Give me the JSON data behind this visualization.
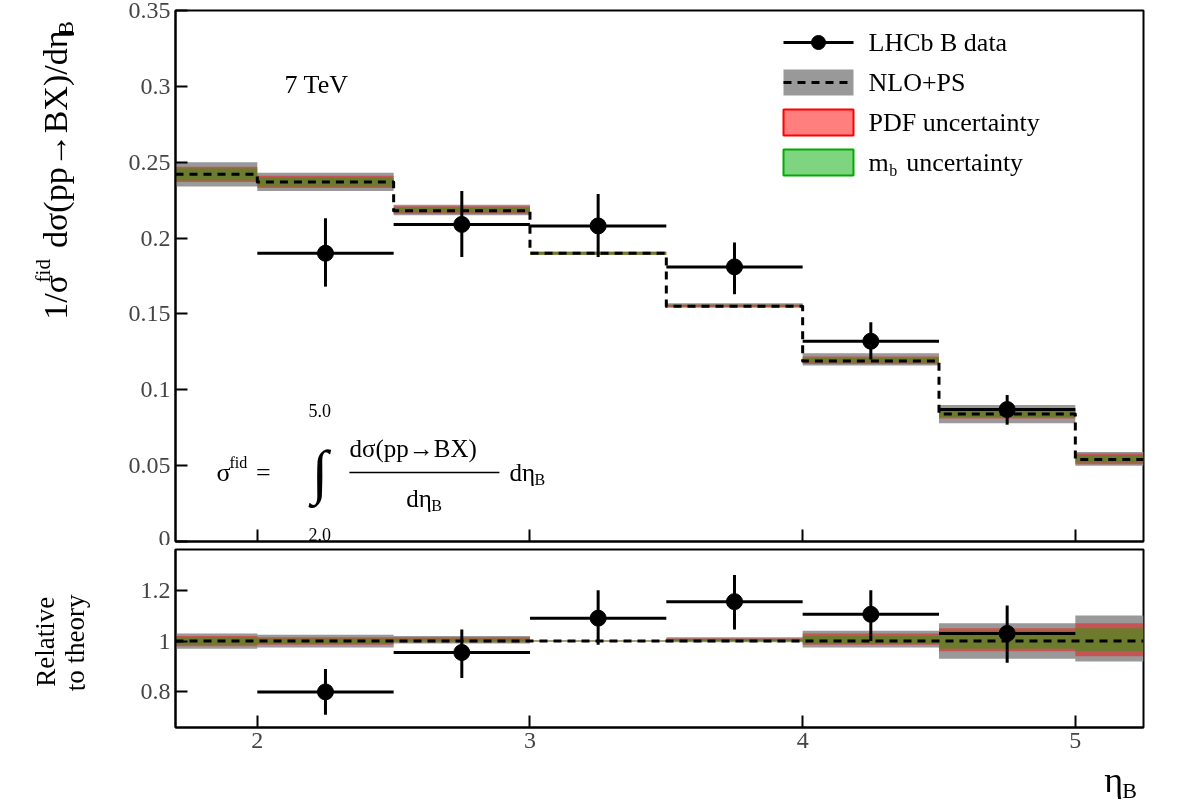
{
  "chart_data": [
    {
      "type": "step",
      "ylabel": "1/σ$^{fid}$ dσ(pp→BX)/dη$_{B}$",
      "xlim": [
        1.7,
        5.25
      ],
      "xticks": [
        2,
        3,
        4,
        5
      ],
      "ylim": [
        0,
        0.35
      ],
      "yticks": [
        0,
        0.05,
        0.1,
        0.15,
        0.2,
        0.25,
        0.3,
        0.35
      ],
      "tick_labels": "y",
      "grid": false,
      "legend": "top right",
      "marker": "circle",
      "annotations": [
        "7 TeV",
        "σ$^{fid}$ =",
        "∫",
        "5.0",
        "2.0",
        "dσ(pp→BX)",
        "dη$_{B}$",
        "dη$_{B}$"
      ],
      "series": [
        {
          "name": "LHCb B data",
          "type": "scatter",
          "color": "#000000",
          "x": [
            2.25,
            2.75,
            3.25,
            3.75,
            4.25,
            4.75
          ],
          "xerrors": [
            0.25,
            0.25,
            0.25,
            0.25,
            0.25,
            0.25
          ],
          "values": [
            0.19,
            0.209,
            0.208,
            0.181,
            0.132,
            0.087
          ],
          "errors": [
            [
              0.168,
              0.213
            ],
            [
              0.1875,
              0.231
            ],
            [
              0.1875,
              0.229
            ],
            [
              0.163,
              0.197
            ],
            [
              0.12,
              0.1445
            ],
            [
              0.077,
              0.0965
            ]
          ]
        },
        {
          "name": "NLO+PS",
          "line_style": "dashed",
          "marker": "none",
          "color": "#000000",
          "x": [
            1.7,
            2,
            2.5,
            3,
            3.5,
            4,
            4.5,
            5,
            5.25
          ],
          "values": [
            0.242,
            0.237,
            0.218,
            0.19,
            0.155,
            0.119,
            0.084,
            0.054,
            0.054
          ],
          "lower": [
            0.234,
            0.231,
            0.215,
            0.189,
            0.154,
            0.116,
            0.078,
            0.05,
            0.05
          ],
          "upper": [
            0.25,
            0.243,
            0.222,
            0.191,
            0.157,
            0.124,
            0.09,
            0.059,
            0.059
          ]
        },
        {
          "name": "PDF uncertainty",
          "color": "#ff0000",
          "x": [
            1.7,
            2,
            2.5,
            3,
            3.5,
            4,
            4.5,
            5,
            5.25
          ],
          "values": [
            null,
            null,
            null,
            null,
            null,
            null,
            null,
            null,
            null
          ],
          "lower": [
            0.237,
            0.233,
            0.216,
            0.189,
            0.1545,
            0.117,
            0.081,
            0.051,
            0.051
          ],
          "upper": [
            0.247,
            0.241,
            0.221,
            0.191,
            0.156,
            0.122,
            0.088,
            0.058,
            0.058
          ]
        },
        {
          "name": "m$_{b}$ uncertainty",
          "color": "#00aa00",
          "x": [
            1.7,
            2,
            2.5,
            3,
            3.5,
            4,
            4.5,
            5,
            5.25
          ],
          "values": [
            null,
            null,
            null,
            null,
            null,
            null,
            null,
            null,
            null
          ],
          "lower": [
            0.238,
            0.234,
            0.217,
            0.189,
            0.155,
            0.118,
            0.082,
            0.052,
            0.052
          ],
          "upper": [
            0.246,
            0.24,
            0.22,
            0.191,
            0.156,
            0.121,
            0.087,
            0.057,
            0.057
          ]
        }
      ]
    },
    {
      "type": "step",
      "ylabel": "Relative\nto theory",
      "xlabel": "η$_{B}$",
      "xlim": [
        1.7,
        5.25
      ],
      "xticks": [
        2,
        3,
        4,
        5
      ],
      "ylim": [
        0.66,
        1.36
      ],
      "yticks": [
        0.8,
        1,
        1.2
      ],
      "grid": false,
      "marker": "circle",
      "series": [
        {
          "type": "scatter",
          "color": "#000000",
          "x": [
            2.25,
            2.75,
            3.25,
            3.75,
            4.25,
            4.75
          ],
          "xerrors": [
            0.25,
            0.25,
            0.25,
            0.25,
            0.25,
            0.25
          ],
          "values": [
            0.8,
            0.955,
            1.09,
            1.155,
            1.105,
            1.03
          ],
          "errors": [
            [
              0.71,
              0.89
            ],
            [
              0.855,
              1.045
            ],
            [
              0.985,
              1.2
            ],
            [
              1.045,
              1.26
            ],
            [
              1.0,
              1.2
            ],
            [
              0.915,
              1.14
            ]
          ]
        },
        {
          "line_style": "dashed",
          "marker": "none",
          "color": "#000000",
          "x": [
            1.7,
            2,
            2.5,
            3,
            3.5,
            4,
            4.5,
            5,
            5.25
          ],
          "values": [
            1,
            1,
            1,
            1,
            1,
            1,
            1,
            1,
            1
          ],
          "lower": [
            0.97,
            0.975,
            0.99,
            0.998,
            0.995,
            0.975,
            0.93,
            0.92,
            0.92
          ],
          "upper": [
            1.03,
            1.025,
            1.02,
            1.002,
            1.015,
            1.04,
            1.07,
            1.1,
            1.1
          ]
        },
        {
          "color": "#ff0000",
          "x": [
            1.7,
            2,
            2.5,
            3,
            3.5,
            4,
            4.5,
            5,
            5.25
          ],
          "values": [
            null,
            null,
            null,
            null,
            null,
            null,
            null,
            null,
            null
          ],
          "lower": [
            0.98,
            0.985,
            0.995,
            0.998,
            0.998,
            0.985,
            0.96,
            0.94,
            0.94
          ],
          "upper": [
            1.02,
            1.015,
            1.015,
            1.002,
            1.01,
            1.03,
            1.05,
            1.07,
            1.07
          ]
        },
        {
          "color": "#00aa00",
          "x": [
            1.7,
            2,
            2.5,
            3,
            3.5,
            4,
            4.5,
            5,
            5.25
          ],
          "values": [
            null,
            null,
            null,
            null,
            null,
            null,
            null,
            null,
            null
          ],
          "lower": [
            0.985,
            0.99,
            0.998,
            0.998,
            1.0,
            0.99,
            0.97,
            0.96,
            0.96
          ],
          "upper": [
            1.015,
            1.01,
            1.01,
            1.002,
            1.008,
            1.02,
            1.04,
            1.05,
            1.05
          ]
        }
      ]
    }
  ]
}
